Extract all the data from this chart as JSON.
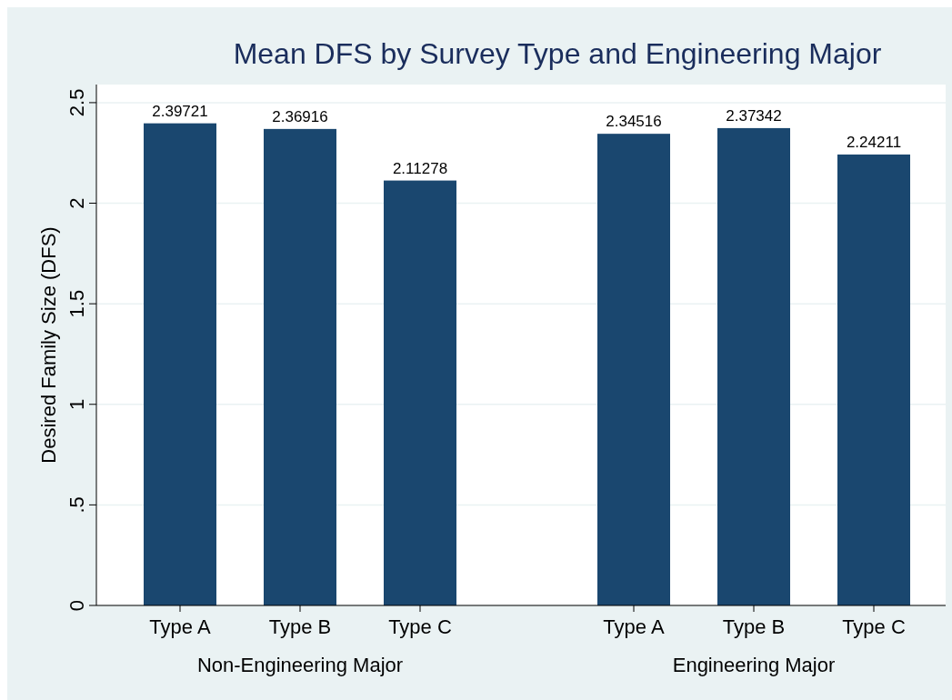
{
  "chart_data": {
    "type": "bar",
    "title": "Mean DFS by Survey Type and Engineering Major",
    "ylabel": "Desired Family Size (DFS)",
    "categories": [
      "Type A",
      "Type B",
      "Type C",
      "Type A",
      "Type B",
      "Type C"
    ],
    "values": [
      2.39721,
      2.36916,
      2.11278,
      2.34516,
      2.37342,
      2.24211
    ],
    "color": "#1a476f",
    "ylim": [
      0,
      2.59
    ],
    "yticks": [
      0,
      {
        "value": 0.5,
        "label": ".5"
      },
      1,
      1.5,
      2,
      2.5
    ],
    "grid": "y",
    "data_labels": true,
    "annotations": [
      "Non-Engineering Major",
      "Engineering Major"
    ]
  }
}
